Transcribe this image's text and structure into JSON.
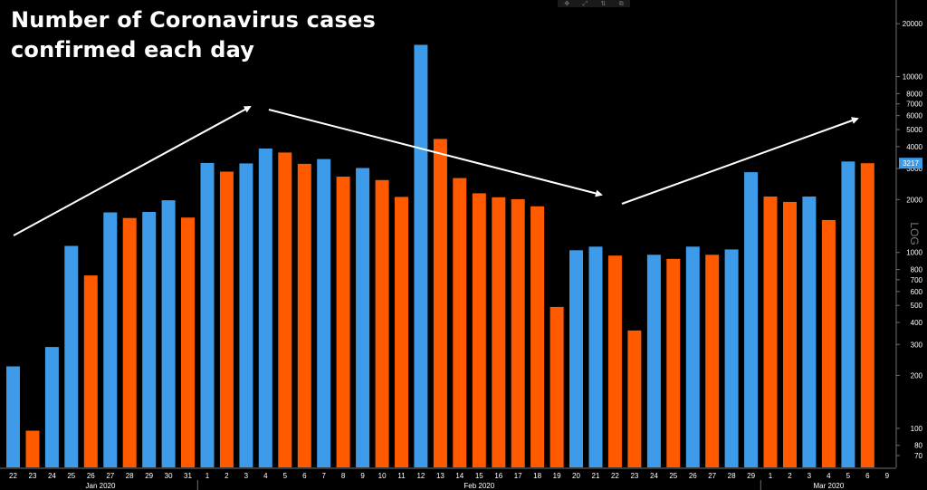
{
  "chart_data": {
    "type": "bar",
    "title": "Number of Coronavirus cases confirmed each day",
    "title_lines": [
      "Number of Coronavirus cases",
      "confirmed each day"
    ],
    "yscale": "log",
    "ylabel": "LOG",
    "ylim": [
      60,
      26000
    ],
    "y_ticks": [
      70,
      80,
      100,
      200,
      300,
      400,
      500,
      600,
      700,
      800,
      1000,
      2000,
      3000,
      4000,
      5000,
      6000,
      7000,
      8000,
      10000,
      20000
    ],
    "y_tick_labels": [
      "70",
      "80",
      "100",
      "200",
      "300",
      "400",
      "500",
      "600",
      "700",
      "800",
      "1000",
      "2000",
      "3000",
      "4000",
      "5000",
      "6000",
      "7000",
      "8000",
      "10000",
      "20000"
    ],
    "last_value_label": "3217",
    "categories": [
      "22",
      "23",
      "24",
      "25",
      "26",
      "27",
      "28",
      "29",
      "30",
      "31",
      "1",
      "2",
      "3",
      "4",
      "5",
      "6",
      "7",
      "8",
      "9",
      "10",
      "11",
      "12",
      "13",
      "14",
      "15",
      "16",
      "17",
      "18",
      "19",
      "20",
      "21",
      "22",
      "23",
      "24",
      "25",
      "26",
      "27",
      "28",
      "29",
      "1",
      "2",
      "3",
      "4",
      "5",
      "6"
    ],
    "extra_x_tick_labels": [
      "9"
    ],
    "month_labels": [
      "Jan 2020",
      "Feb 2020",
      "Mar 2020"
    ],
    "values": [
      225,
      97,
      290,
      1090,
      740,
      1690,
      1570,
      1700,
      1980,
      1580,
      3230,
      2880,
      3210,
      3900,
      3700,
      3190,
      3400,
      2700,
      3020,
      2580,
      2070,
      15150,
      4420,
      2650,
      2170,
      2060,
      2010,
      1830,
      490,
      1030,
      1080,
      960,
      360,
      970,
      920,
      1080,
      970,
      1040,
      2860,
      2080,
      1940,
      2080,
      1530,
      3290,
      3217
    ],
    "colors": {
      "series_a": "#3d9be9",
      "series_b": "#ff5a00",
      "background": "#000000",
      "axis": "#6f6f6f",
      "text": "#ffffff",
      "label_badge": "#3d9be9"
    },
    "bar_colors": [
      "b",
      "o",
      "b",
      "b",
      "o",
      "b",
      "o",
      "b",
      "b",
      "o",
      "b",
      "o",
      "b",
      "b",
      "o",
      "o",
      "b",
      "o",
      "b",
      "o",
      "o",
      "b",
      "o",
      "o",
      "o",
      "o",
      "o",
      "o",
      "o",
      "b",
      "b",
      "o",
      "o",
      "b",
      "o",
      "b",
      "o",
      "b",
      "b",
      "o",
      "o",
      "b",
      "o",
      "b",
      "o"
    ],
    "trend_arrows": 3,
    "grid": false,
    "legend": "none"
  },
  "toolbar": {
    "icons": [
      "✥",
      "⤢",
      "⇅",
      "⧉"
    ]
  }
}
